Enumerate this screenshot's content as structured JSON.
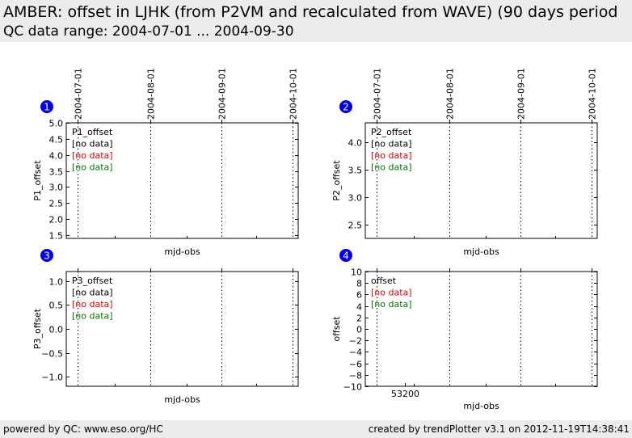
{
  "header": {
    "title": "AMBER: offset in LJHK (from P2VM and recalculated from WAVE) (90 days period",
    "subtitle": "QC data range: 2004-07-01 ... 2004-09-30"
  },
  "footer": {
    "left": "powered by QC: www.eso.org/HC",
    "right": "created by trendPlotter v3.1 on 2012-11-19T14:38:41"
  },
  "colors": {
    "marker": "#0000ee",
    "black": "#000000",
    "red": "#dd0000",
    "green": "#007700"
  },
  "chart_data": [
    {
      "type": "scatter",
      "panel_number": "1",
      "ylabel": "P1_offset",
      "xlabel": "mjd-obs",
      "ylim": [
        1.4,
        5.0
      ],
      "yticks": [
        1.5,
        2.0,
        2.5,
        3.0,
        3.5,
        4.0,
        4.5,
        5.0
      ],
      "ytick_labels": [
        "1.5",
        "2.0",
        "2.5",
        "3.0",
        "3.5",
        "4.0",
        "4.5",
        "5.0"
      ],
      "date_ticks": [
        "2004-07-01",
        "2004-08-01",
        "2004-09-01",
        "2004-10-01"
      ],
      "mjd_xticks": [],
      "legend": [
        {
          "text": "P1_offset",
          "color": "black"
        },
        {
          "text": "[no data]",
          "color": "black"
        },
        {
          "text": "[no data]",
          "color": "red"
        },
        {
          "text": "[no data]",
          "color": "green"
        }
      ],
      "series": []
    },
    {
      "type": "scatter",
      "panel_number": "2",
      "ylabel": "P2_offset",
      "xlabel": "mjd-obs",
      "ylim": [
        2.25,
        4.35
      ],
      "yticks": [
        2.5,
        3.0,
        3.5,
        4.0
      ],
      "ytick_labels": [
        "2.5",
        "3.0",
        "3.5",
        "4.0"
      ],
      "date_ticks": [
        "2004-07-01",
        "2004-08-01",
        "2004-09-01",
        "2004-10-01"
      ],
      "mjd_xticks": [],
      "legend": [
        {
          "text": "P2_offset",
          "color": "black"
        },
        {
          "text": "[no data]",
          "color": "black"
        },
        {
          "text": "[no data]",
          "color": "red"
        },
        {
          "text": "[no data]",
          "color": "green"
        }
      ],
      "series": []
    },
    {
      "type": "scatter",
      "panel_number": "3",
      "ylabel": "P3_offset",
      "xlabel": "mjd-obs",
      "ylim": [
        -1.2,
        1.2
      ],
      "yticks": [
        -1.0,
        -0.5,
        0.0,
        0.5,
        1.0
      ],
      "ytick_labels": [
        "−1.0",
        "−0.5",
        "0.0",
        "0.5",
        "1.0"
      ],
      "date_ticks": [
        "2004-07-01",
        "2004-08-01",
        "2004-09-01",
        "2004-10-01"
      ],
      "mjd_xticks": [],
      "legend": [
        {
          "text": "P3_offset",
          "color": "black"
        },
        {
          "text": "[no data]",
          "color": "black"
        },
        {
          "text": "[no data]",
          "color": "red"
        },
        {
          "text": "[no data]",
          "color": "green"
        }
      ],
      "series": []
    },
    {
      "type": "scatter",
      "panel_number": "4",
      "ylabel": "offset",
      "xlabel": "mjd-obs",
      "ylim": [
        -10,
        10
      ],
      "yticks": [
        -10,
        -8,
        -6,
        -4,
        -2,
        0,
        2,
        4,
        6,
        8,
        10
      ],
      "ytick_labels": [
        "−10",
        "−8",
        "−6",
        "−4",
        "−2",
        "0",
        "2",
        "4",
        "6",
        "8",
        "10"
      ],
      "date_ticks": [
        "2004-07-01",
        "2004-08-01",
        "2004-09-01",
        "2004-10-01"
      ],
      "mjd_xticks": [
        "53200"
      ],
      "legend": [
        {
          "text": "offset",
          "color": "black"
        },
        {
          "text": "[no data]",
          "color": "red"
        },
        {
          "text": "[no data]",
          "color": "green"
        }
      ],
      "series": []
    }
  ]
}
